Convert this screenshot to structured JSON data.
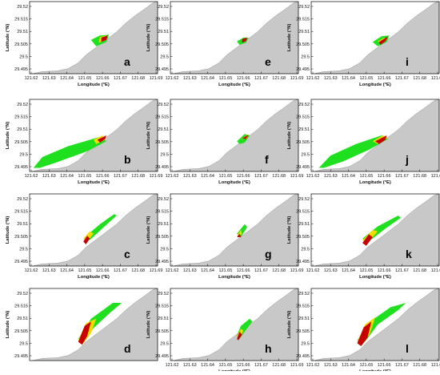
{
  "figure": {
    "x_axis_label": "Longitude (°E)",
    "y_axis_label": "Latitude (°N)",
    "x_ticks": [
      "121.62",
      "121.63",
      "121.64",
      "121.65",
      "121.66",
      "121.67",
      "121.68",
      "121.69"
    ],
    "y_ticks": [
      "29.495",
      "29.5",
      "29.505",
      "29.51",
      "29.515",
      "29.52"
    ],
    "colors": {
      "land": "#c8c8c8",
      "land_edge": "#999999",
      "green": "#1ee01e",
      "yellow": "#f0dc00",
      "orange": "#ff8c00",
      "red": "#c80000",
      "dark_red": "#6e0000"
    },
    "panels": [
      {
        "letter": "a",
        "show_x_labels": true,
        "show_y_labels": true
      },
      {
        "letter": "e",
        "show_x_labels": true,
        "show_y_labels": true
      },
      {
        "letter": "i",
        "show_x_labels": true,
        "show_y_labels": true
      },
      {
        "letter": "b",
        "show_x_labels": true,
        "show_y_labels": true
      },
      {
        "letter": "f",
        "show_x_labels": true,
        "show_y_labels": true
      },
      {
        "letter": "j",
        "show_x_labels": true,
        "show_y_labels": true
      },
      {
        "letter": "c",
        "show_x_labels": true,
        "show_y_labels": true
      },
      {
        "letter": "g",
        "show_x_labels": true,
        "show_y_labels": true
      },
      {
        "letter": "k",
        "show_x_labels": true,
        "show_y_labels": true
      },
      {
        "letter": "d",
        "show_x_labels": false,
        "show_y_labels": true
      },
      {
        "letter": "h",
        "show_x_labels": true,
        "show_y_labels": true
      },
      {
        "letter": "l",
        "show_x_labels": true,
        "show_y_labels": true
      }
    ]
  }
}
